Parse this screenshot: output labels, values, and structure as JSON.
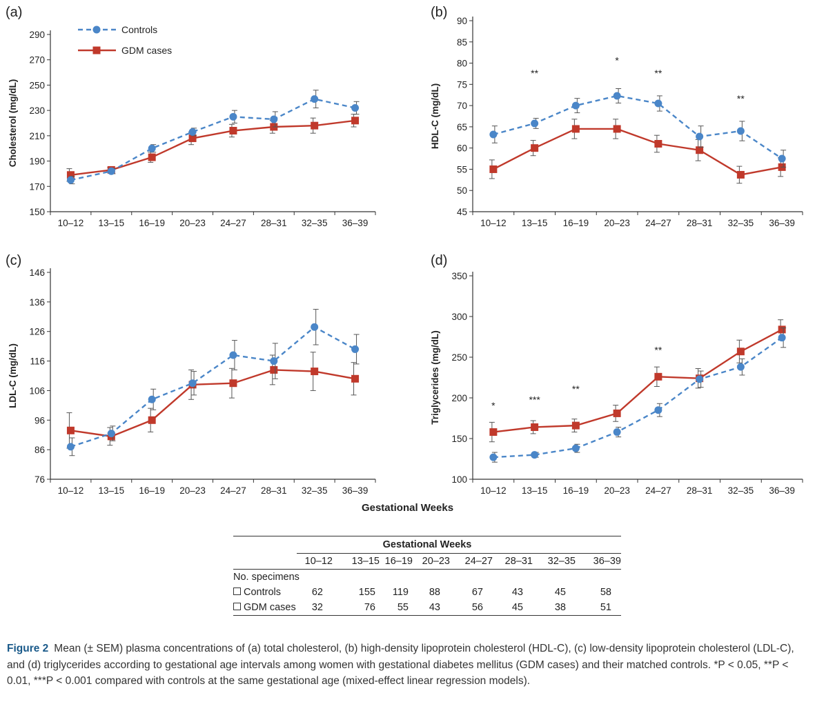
{
  "figure": {
    "global_xlabel": "Gestational Weeks",
    "caption_label": "Figure 2",
    "caption_text": "Mean (± SEM) plasma concentrations of (a) total cholesterol, (b) high-density lipoprotein cholesterol (HDL-C), (c) low-density lipoprotein cholesterol (LDL-C), and (d) triglycerides according to gestational age intervals among women with gestational diabetes mellitus (GDM cases) and their matched controls. *P < 0.05, **P < 0.01, ***P < 0.001 compared with controls at the same gestational age (mixed-effect linear regression models).",
    "colors": {
      "controls": "#4a86c8",
      "gdm": "#c0392b",
      "axis": "#333333",
      "error": "#555555"
    }
  },
  "legend": {
    "controls": "Controls",
    "gdm": "GDM cases"
  },
  "chart_data": [
    {
      "panel": "(a)",
      "type": "line",
      "ylabel": "Cholesterol (mg/dL)",
      "categories": [
        "10–12",
        "13–15",
        "16–19",
        "20–23",
        "24–27",
        "28–31",
        "32–35",
        "36–39"
      ],
      "ylim": [
        150,
        290
      ],
      "yticks": [
        150,
        170,
        190,
        210,
        230,
        250,
        270,
        290
      ],
      "series": [
        {
          "name": "Controls",
          "values": [
            175,
            182,
            200,
            213,
            225,
            223,
            239,
            232
          ],
          "err": [
            3,
            2,
            3,
            3,
            5,
            6,
            7,
            5
          ]
        },
        {
          "name": "GDM cases",
          "values": [
            179,
            183,
            193,
            208,
            214,
            217,
            218,
            222
          ],
          "err": [
            5,
            2,
            4,
            5,
            5,
            5,
            6,
            5
          ]
        }
      ],
      "annotations": []
    },
    {
      "panel": "(b)",
      "type": "line",
      "ylabel": "HDL-C (mg/dL)",
      "categories": [
        "10–12",
        "13–15",
        "16–19",
        "20–23",
        "24–27",
        "28–31",
        "32–35",
        "36–39"
      ],
      "ylim": [
        45,
        90
      ],
      "yticks": [
        45,
        50,
        55,
        60,
        65,
        70,
        75,
        80,
        85,
        90
      ],
      "series": [
        {
          "name": "Controls",
          "values": [
            63.2,
            65.8,
            70,
            72.3,
            70.5,
            62.7,
            64,
            57.5
          ],
          "err": [
            2,
            1.2,
            1.7,
            1.7,
            1.8,
            2.5,
            2.3,
            2
          ]
        },
        {
          "name": "GDM cases",
          "values": [
            55,
            60,
            64.5,
            64.5,
            61,
            59.5,
            53.7,
            55.5
          ],
          "err": [
            2.2,
            1.8,
            2.3,
            2.3,
            2,
            2.5,
            2,
            2.2
          ]
        }
      ],
      "annotations": [
        {
          "index": 1,
          "text": "**",
          "value": 77.5
        },
        {
          "index": 3,
          "text": "*",
          "value": 80.5
        },
        {
          "index": 4,
          "text": "**",
          "value": 77.5
        },
        {
          "index": 6,
          "text": "**",
          "value": 71.5
        }
      ]
    },
    {
      "panel": "(c)",
      "type": "line",
      "ylabel": "LDL-C (mg/dL)",
      "categories": [
        "10–12",
        "13–15",
        "16–19",
        "20–23",
        "24–27",
        "28–31",
        "32–35",
        "36–39"
      ],
      "ylim": [
        76,
        146
      ],
      "yticks": [
        76,
        86,
        96,
        106,
        116,
        126,
        136,
        146
      ],
      "series": [
        {
          "name": "Controls",
          "values": [
            87,
            91.5,
            103,
            108.5,
            118,
            116,
            127.5,
            120
          ],
          "err": [
            3,
            2.5,
            3.5,
            4,
            5,
            6,
            6,
            5
          ]
        },
        {
          "name": "GDM cases",
          "values": [
            92.5,
            90.5,
            96,
            108,
            108.5,
            113,
            112.5,
            110
          ],
          "err": [
            6,
            3,
            4,
            5,
            5,
            5,
            6.5,
            5.5
          ]
        }
      ],
      "annotations": []
    },
    {
      "panel": "(d)",
      "type": "line",
      "ylabel": "Triglycerides (mg/dL)",
      "categories": [
        "10–12",
        "13–15",
        "16–19",
        "20–23",
        "24–27",
        "28–31",
        "32–35",
        "36–39"
      ],
      "ylim": [
        100,
        350
      ],
      "yticks": [
        100,
        150,
        200,
        250,
        300,
        350
      ],
      "series": [
        {
          "name": "Controls",
          "values": [
            127,
            130,
            138,
            158,
            185,
            223,
            238,
            274
          ],
          "err": [
            6,
            3,
            5,
            6,
            8,
            10,
            10,
            12
          ]
        },
        {
          "name": "GDM cases",
          "values": [
            158,
            164,
            166,
            181,
            226,
            224,
            257,
            284
          ],
          "err": [
            12,
            8,
            8,
            10,
            12,
            12,
            14,
            12
          ]
        }
      ],
      "annotations": [
        {
          "index": 0,
          "text": "*",
          "value": 190
        },
        {
          "index": 1,
          "text": "***",
          "value": 197
        },
        {
          "index": 2,
          "text": "**",
          "value": 210
        },
        {
          "index": 4,
          "text": "**",
          "value": 258
        }
      ]
    }
  ],
  "table": {
    "title": "Gestational Weeks",
    "columns": [
      "10–12",
      "13–15",
      "16–19",
      "20–23",
      "24–27",
      "28–31",
      "32–35",
      "36–39"
    ],
    "section_label": "No. specimens",
    "rows": [
      {
        "label": "Controls",
        "values": [
          "62",
          "155",
          "119",
          "88",
          "67",
          "43",
          "45",
          "58"
        ]
      },
      {
        "label": "GDM cases",
        "values": [
          "32",
          "76",
          "55",
          "43",
          "56",
          "45",
          "38",
          "51"
        ]
      }
    ]
  }
}
